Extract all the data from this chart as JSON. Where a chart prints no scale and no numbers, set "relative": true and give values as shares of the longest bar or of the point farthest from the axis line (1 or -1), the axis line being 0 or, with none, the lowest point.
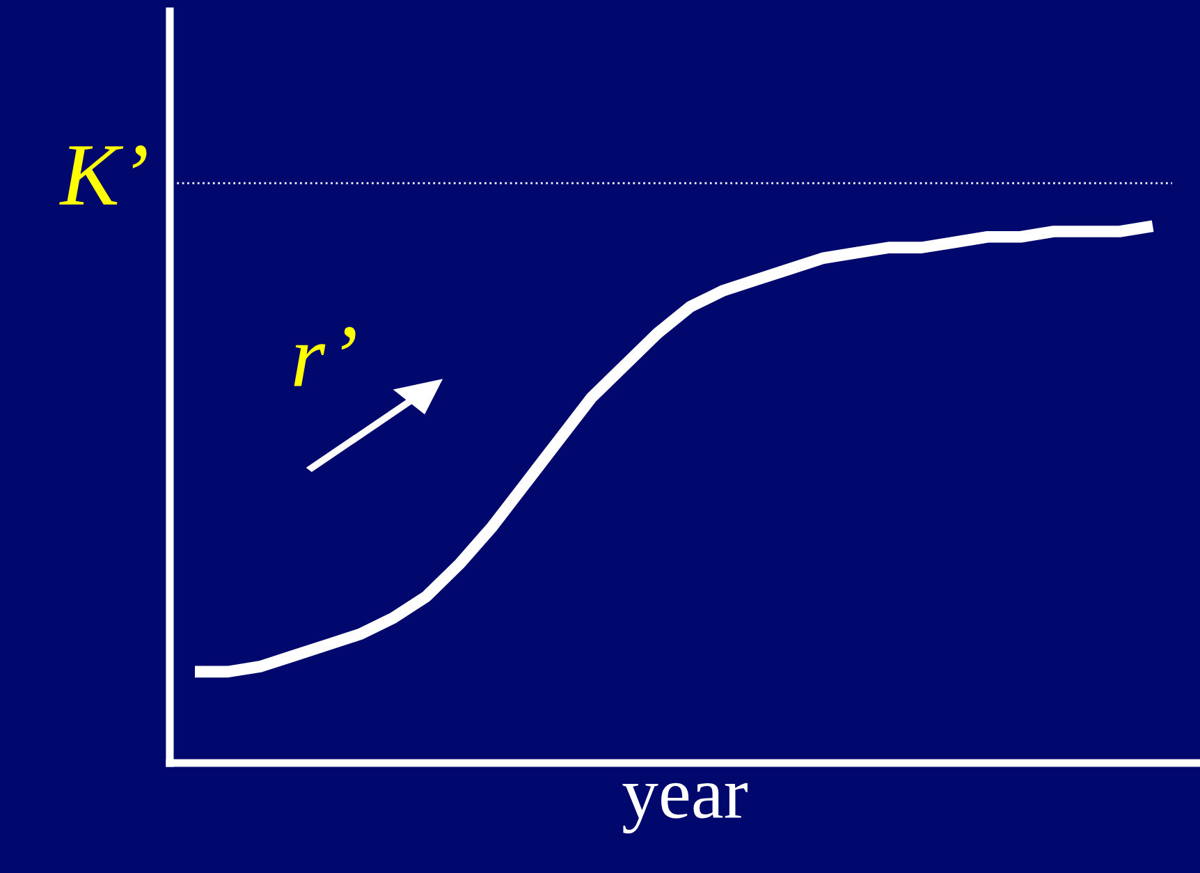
{
  "chart_data": {
    "type": "line",
    "xlabel": "year",
    "relative": true,
    "categories": [
      null,
      null,
      null,
      null,
      null,
      null,
      null,
      null,
      null,
      null,
      null,
      null,
      null,
      null,
      null,
      null,
      null,
      null,
      null,
      null,
      null,
      null,
      null,
      null,
      null,
      null,
      null,
      null,
      null,
      null
    ],
    "series": [
      {
        "color": "#ffffff",
        "values": [
          0.17,
          0.17,
          0.18,
          0.2,
          0.22,
          0.24,
          0.27,
          0.31,
          0.37,
          0.44,
          0.52,
          0.6,
          0.68,
          0.74,
          0.8,
          0.85,
          0.88,
          0.9,
          0.92,
          0.94,
          0.95,
          0.96,
          0.96,
          0.97,
          0.98,
          0.98,
          0.99,
          0.99,
          0.99,
          1
        ]
      }
    ],
    "ref_lines": [
      {
        "axis": "y",
        "value": 1.08,
        "label": "K’",
        "color": "#ffffff",
        "line_style": "dotted"
      }
    ],
    "annotations": [
      "r’"
    ],
    "grid": false,
    "legend": false,
    "marker": "none",
    "line_style": "solid",
    "tick_labels": false
  }
}
